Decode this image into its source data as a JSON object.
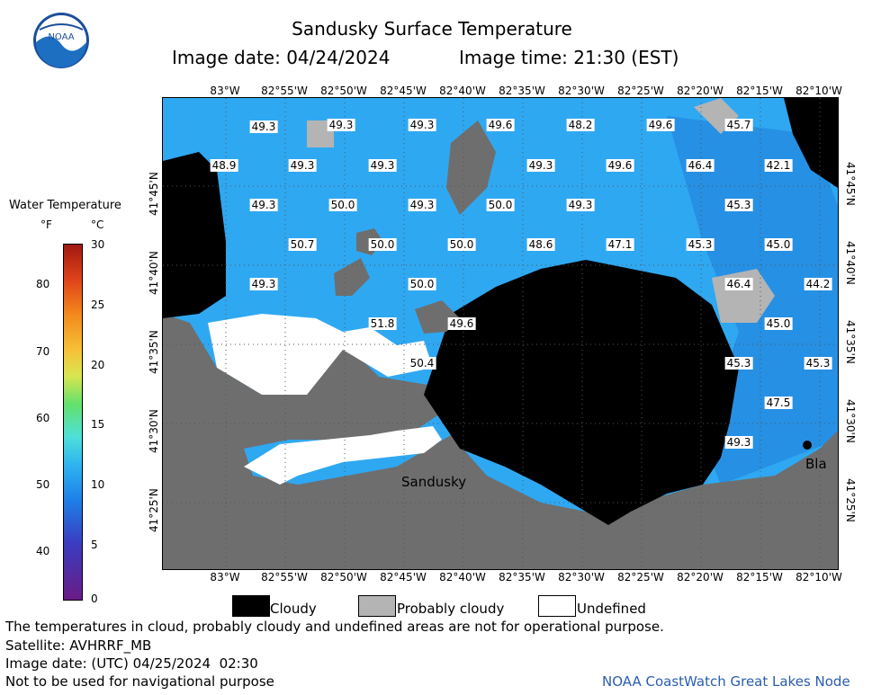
{
  "header": {
    "title": "Sandusky Surface Temperature",
    "image_date": "Image date: 04/24/2024",
    "image_time": "Image time: 21:30 (EST)"
  },
  "logo": {
    "text": "NOAA"
  },
  "colorbar": {
    "title": "Water Temperature",
    "unit_f": "°F",
    "unit_c": "°C",
    "f_ticks": [
      "80",
      "70",
      "60",
      "50",
      "40"
    ],
    "c_ticks": [
      "30",
      "25",
      "20",
      "15",
      "10",
      "5",
      "0"
    ]
  },
  "map": {
    "lon_labels": [
      "83°W",
      "82°55'W",
      "82°50'W",
      "82°45'W",
      "82°40'W",
      "82°35'W",
      "82°30'W",
      "82°25'W",
      "82°20'W",
      "82°15'W",
      "82°10'W"
    ],
    "lat_labels": [
      "41°45'N",
      "41°40'N",
      "41°35'N",
      "41°30'N",
      "41°25'N"
    ],
    "place_labels": {
      "sandusky": "Sandusky",
      "bla": "Bla"
    },
    "temperatures": [
      "49.3",
      "49.3",
      "49.3",
      "49.6",
      "48.2",
      "49.6",
      "45.7",
      "48.9",
      "49.3",
      "49.3",
      "49.3",
      "49.6",
      "46.4",
      "42.1",
      "49.3",
      "50.0",
      "49.3",
      "50.0",
      "49.3",
      "45.3",
      "50.7",
      "50.0",
      "50.0",
      "48.6",
      "47.1",
      "45.3",
      "45.0",
      "49.3",
      "50.0",
      "46.4",
      "44.2",
      "51.8",
      "49.6",
      "45.0",
      "50.4",
      "45.3",
      "45.3",
      "47.5",
      "49.3"
    ]
  },
  "legend": {
    "cloudy": "Cloudy",
    "probably_cloudy": "Probably cloudy",
    "undefined": "Undefined"
  },
  "footer": {
    "disclaimer": "The temperatures in cloud, probably cloudy and undefined areas are not for operational purpose.",
    "satellite": "Satellite: AVHRRF_MB",
    "utc_date": "Image date: (UTC) 04/25/2024  02:30",
    "nav_warning": "Not to be used for navigational purpose",
    "node": "NOAA CoastWatch Great Lakes Node"
  },
  "colors": {
    "water": "#2fa8f2",
    "land": "#6e6e6e",
    "cloud": "#000000",
    "probably_cloudy": "#b4b4b4",
    "undefined": "#ffffff"
  }
}
